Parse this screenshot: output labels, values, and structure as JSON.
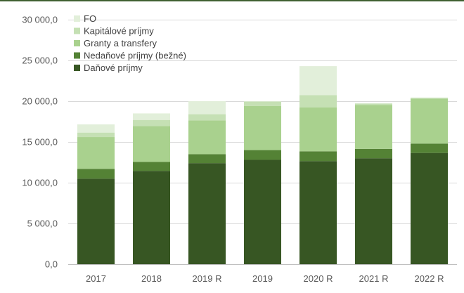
{
  "chart_data": {
    "type": "bar",
    "stacked": true,
    "categories": [
      "2017",
      "2018",
      "2019 R",
      "2019",
      "2020 R",
      "2021 R",
      "2022 R"
    ],
    "series": [
      {
        "name": "Daňové príjmy",
        "color": "#375623",
        "values": [
          10500,
          11450,
          12400,
          12800,
          12650,
          13000,
          13650
        ]
      },
      {
        "name": "Nedaňové príjmy (bežné)",
        "color": "#548235",
        "values": [
          1200,
          1100,
          1100,
          1200,
          1200,
          1150,
          1150
        ]
      },
      {
        "name": "Granty a transfery",
        "color": "#a9d18e",
        "values": [
          3900,
          4400,
          4150,
          5400,
          5400,
          5400,
          5500
        ]
      },
      {
        "name": "Kapitálové príjmy",
        "color": "#c5e0b4",
        "values": [
          550,
          750,
          750,
          550,
          1500,
          150,
          100
        ]
      },
      {
        "name": "FO",
        "color": "#e2efda",
        "values": [
          1000,
          800,
          1600,
          50,
          3550,
          50,
          50
        ]
      }
    ],
    "ylim": [
      0,
      30000
    ],
    "yticks": [
      0,
      5000,
      10000,
      15000,
      20000,
      25000,
      30000
    ],
    "ytick_labels": [
      "0,0",
      "5 000,0",
      "10 000,0",
      "15 000,0",
      "20 000,0",
      "25 000,0",
      "30 000,0"
    ],
    "grid": true,
    "legend_position": "top-left",
    "title": "",
    "xlabel": "",
    "ylabel": ""
  }
}
